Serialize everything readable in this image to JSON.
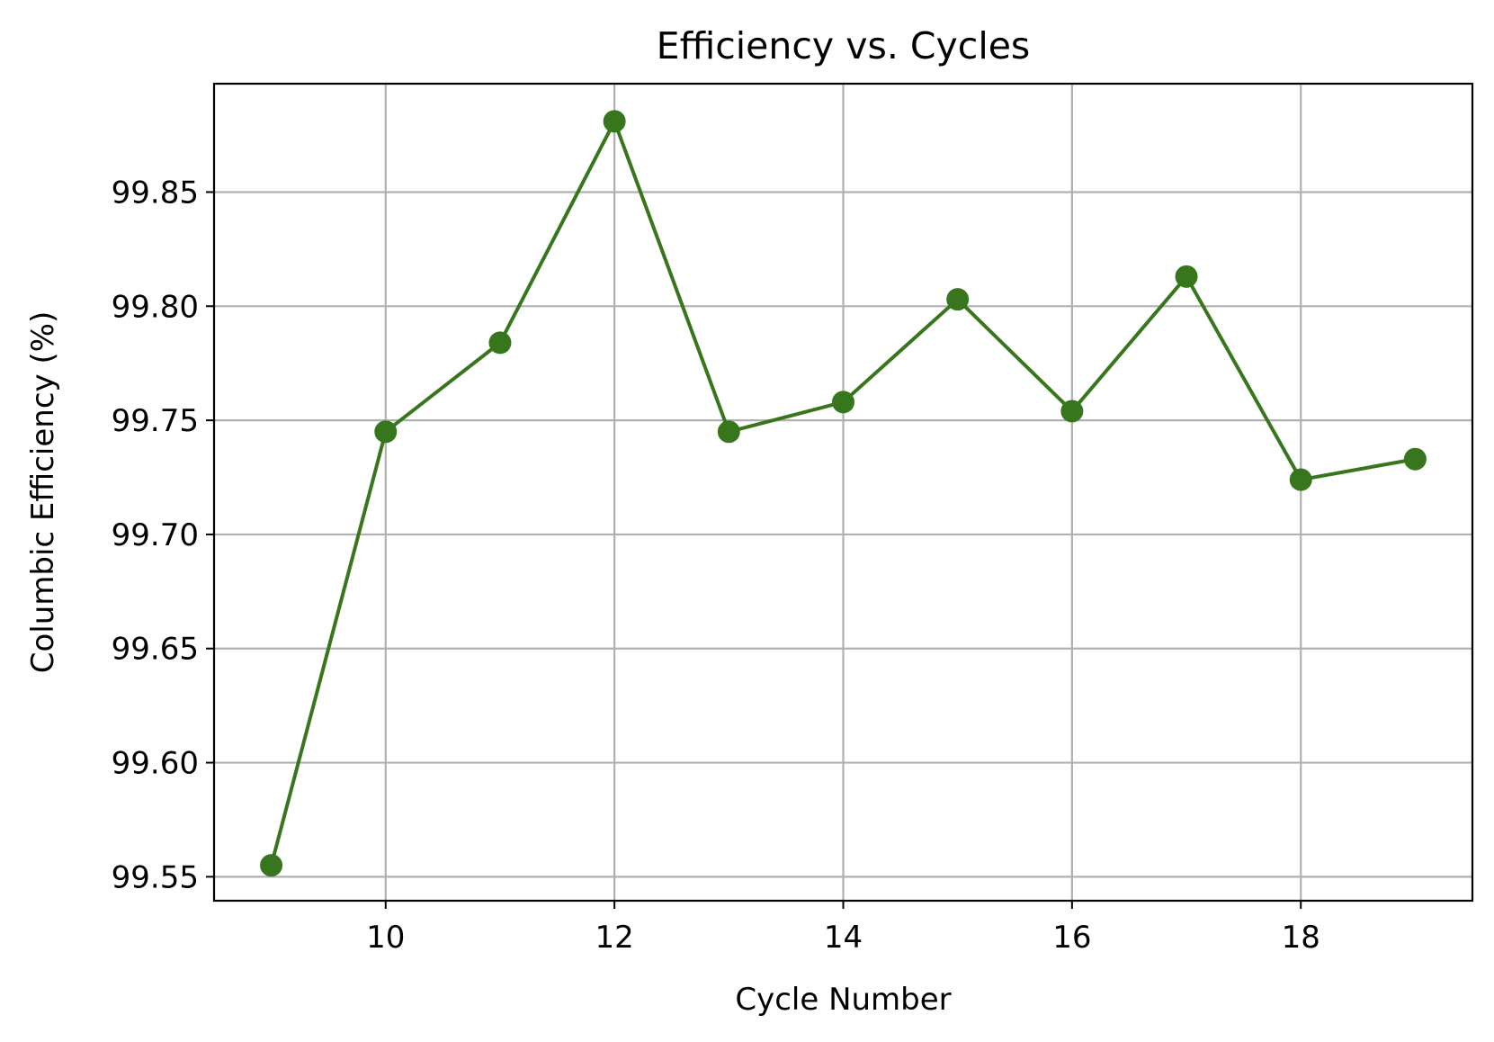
{
  "chart_data": {
    "type": "line",
    "title": "Efficiency vs. Cycles",
    "xlabel": "Cycle Number",
    "ylabel": "Columbic Efficiency (%)",
    "xlim": [
      8.5,
      19.5
    ],
    "ylim": [
      99.5395,
      99.8975
    ],
    "xticks": [
      10,
      12,
      14,
      16,
      18
    ],
    "xtick_labels": [
      "10",
      "12",
      "14",
      "16",
      "18"
    ],
    "yticks": [
      99.55,
      99.6,
      99.65,
      99.7,
      99.75,
      99.8,
      99.85
    ],
    "ytick_labels": [
      "99.55",
      "99.60",
      "99.65",
      "99.70",
      "99.75",
      "99.80",
      "99.85"
    ],
    "grid": true,
    "series": [
      {
        "name": "Columbic Efficiency",
        "color": "#38761d",
        "marker": "circle",
        "x": [
          9,
          10,
          11,
          12,
          13,
          14,
          15,
          16,
          17,
          18,
          19
        ],
        "y": [
          99.555,
          99.745,
          99.784,
          99.881,
          99.745,
          99.758,
          99.803,
          99.754,
          99.813,
          99.724,
          99.733
        ]
      }
    ]
  }
}
